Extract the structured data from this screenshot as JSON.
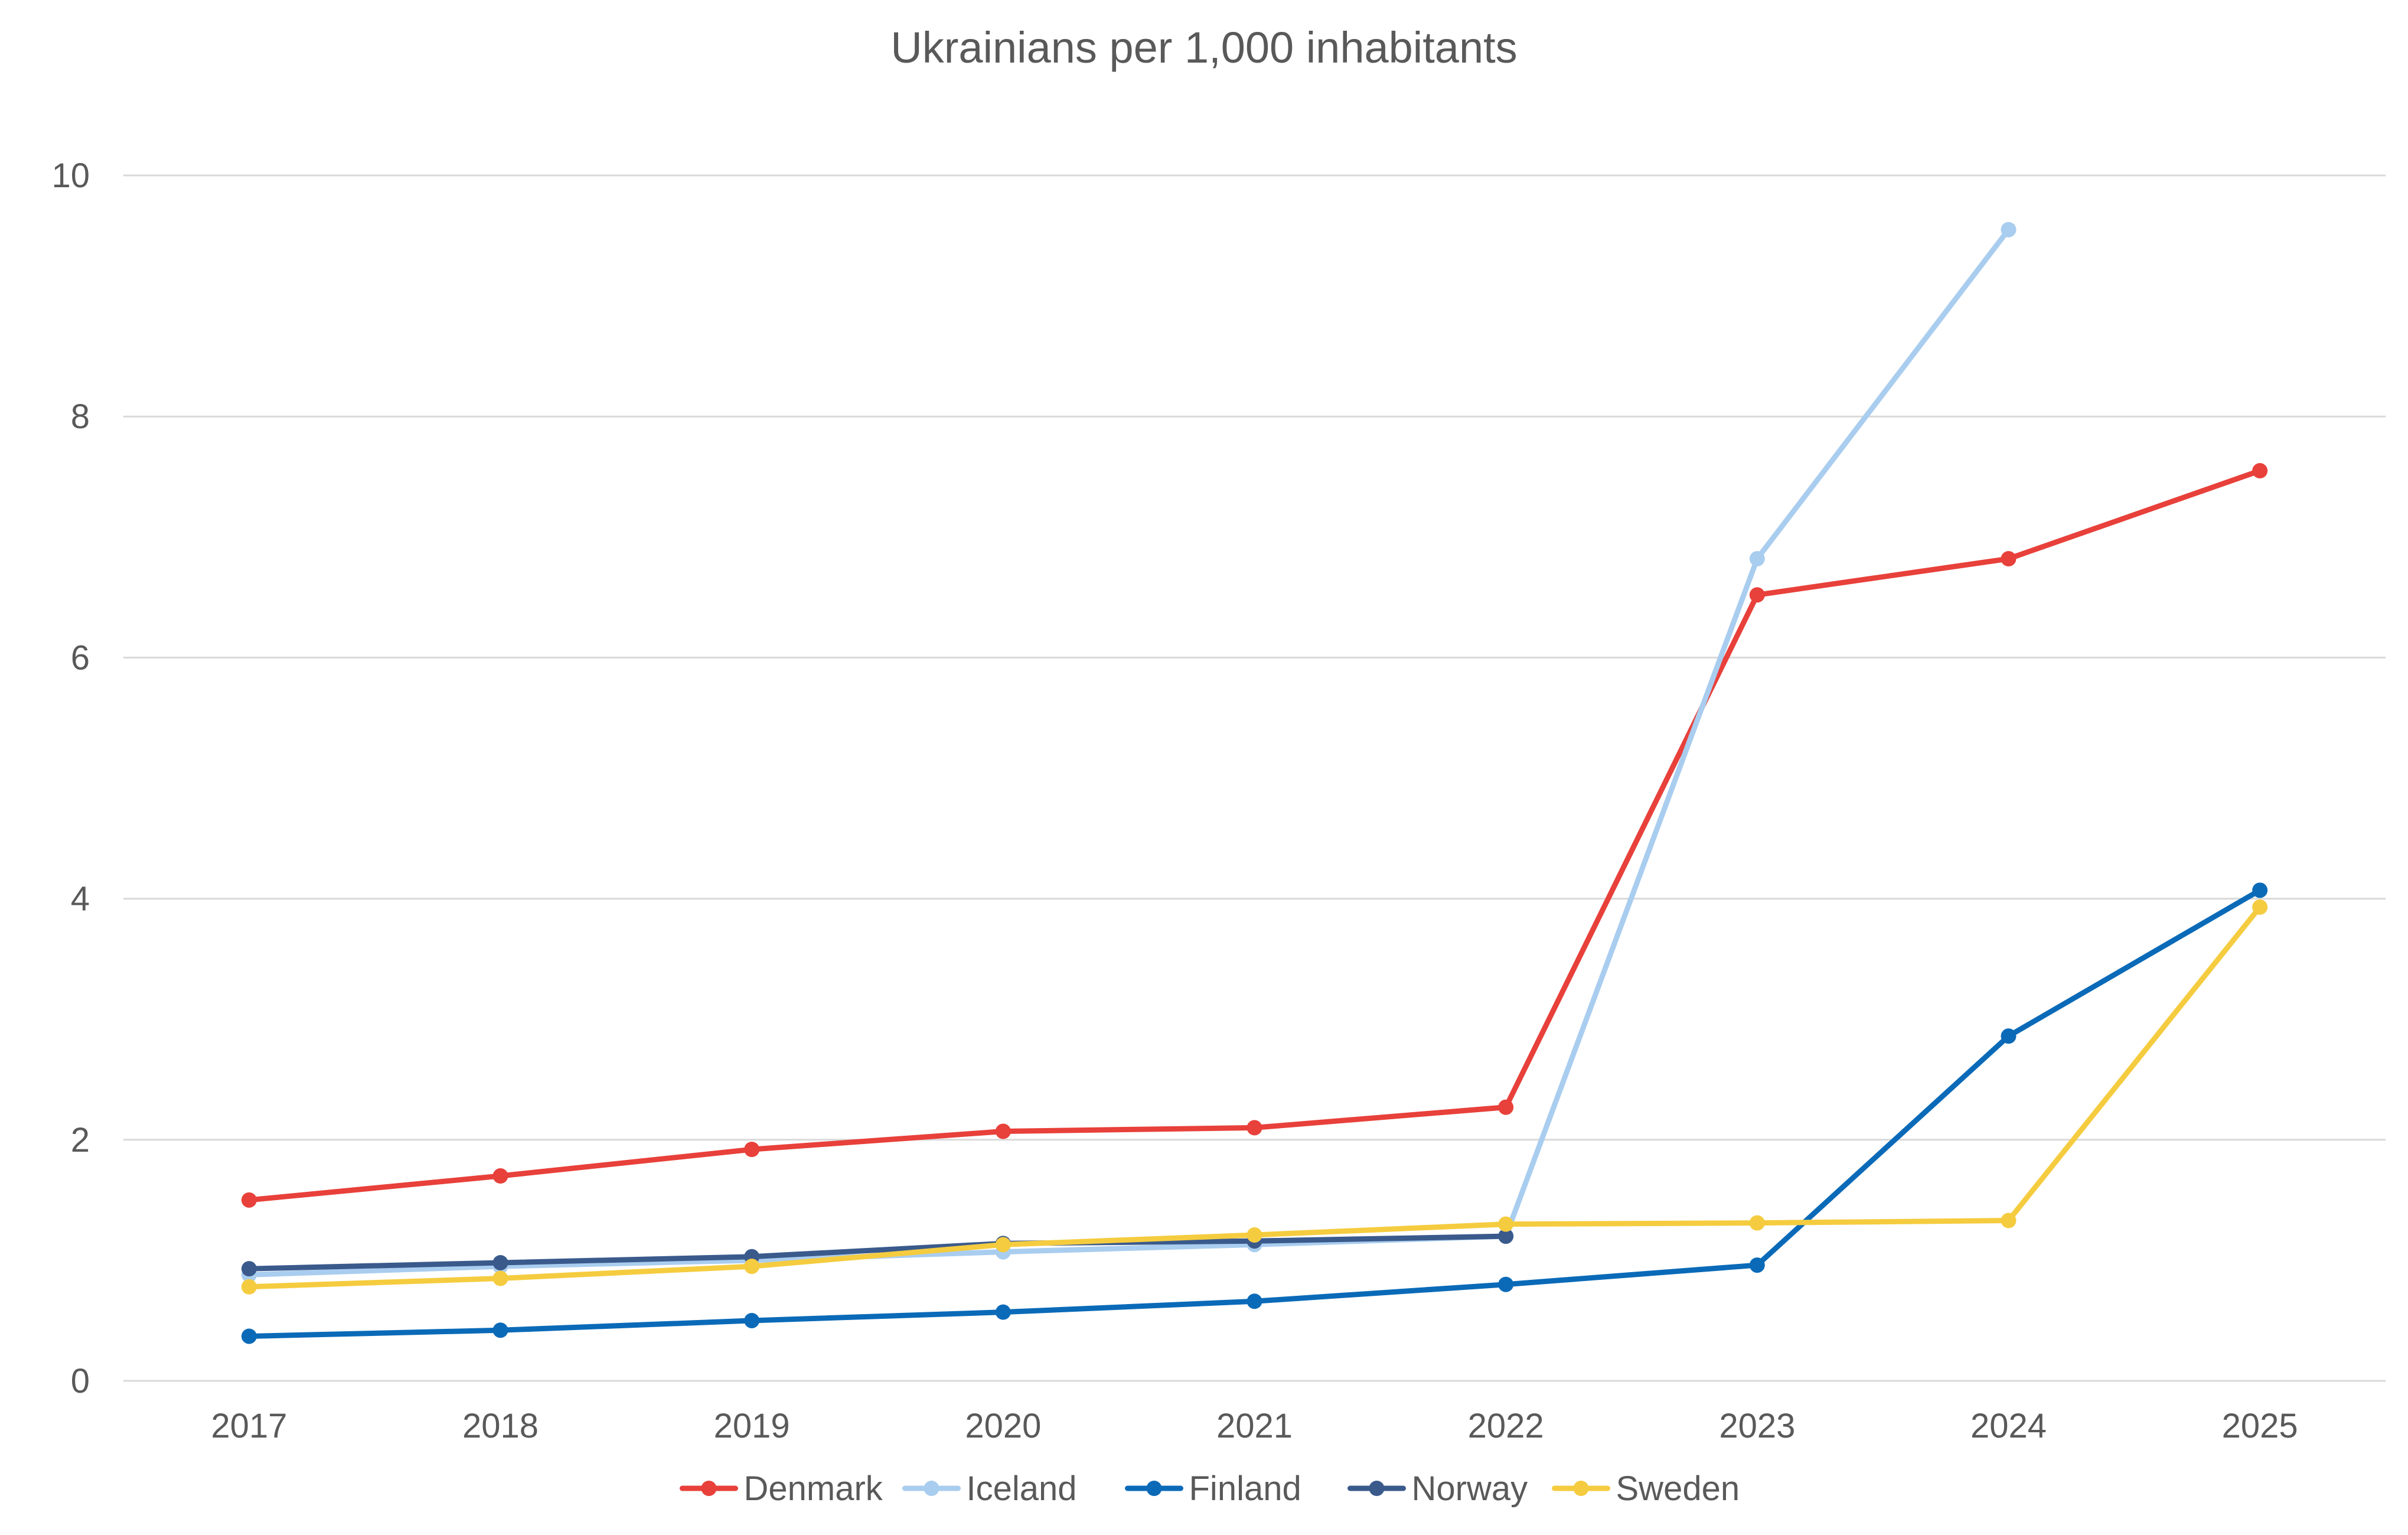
{
  "chart_data": {
    "type": "line",
    "title": "Ukrainians per 1,000 inhabitants",
    "xlabel": "",
    "ylabel": "",
    "x": [
      "2017",
      "2018",
      "2019",
      "2020",
      "2021",
      "2022",
      "2023",
      "2024",
      "2025"
    ],
    "ylim": [
      0,
      10
    ],
    "yticks": [
      "0",
      "2",
      "4",
      "6",
      "8",
      "10"
    ],
    "grid": true,
    "legend_position": "bottom",
    "series": [
      {
        "name": "Denmark",
        "color": "#e8403a",
        "values": [
          1.5,
          1.7,
          1.92,
          2.07,
          2.1,
          2.27,
          6.52,
          6.82,
          7.55
        ]
      },
      {
        "name": "Iceland",
        "color": "#a9cdef",
        "values": [
          0.88,
          0.95,
          1.0,
          1.07,
          1.13,
          1.2,
          6.82,
          9.55,
          null
        ]
      },
      {
        "name": "Finland",
        "color": "#0a6ab8",
        "values": [
          0.37,
          0.42,
          0.5,
          0.57,
          0.66,
          0.8,
          0.96,
          2.86,
          4.07
        ]
      },
      {
        "name": "Norway",
        "color": "#3a5a8c",
        "values": [
          0.93,
          0.98,
          1.03,
          1.14,
          1.16,
          1.2,
          null,
          null,
          null
        ]
      },
      {
        "name": "Sweden",
        "color": "#f5cc3f",
        "values": [
          0.78,
          0.85,
          0.95,
          1.13,
          1.21,
          1.3,
          1.31,
          1.33,
          3.93
        ]
      }
    ]
  }
}
